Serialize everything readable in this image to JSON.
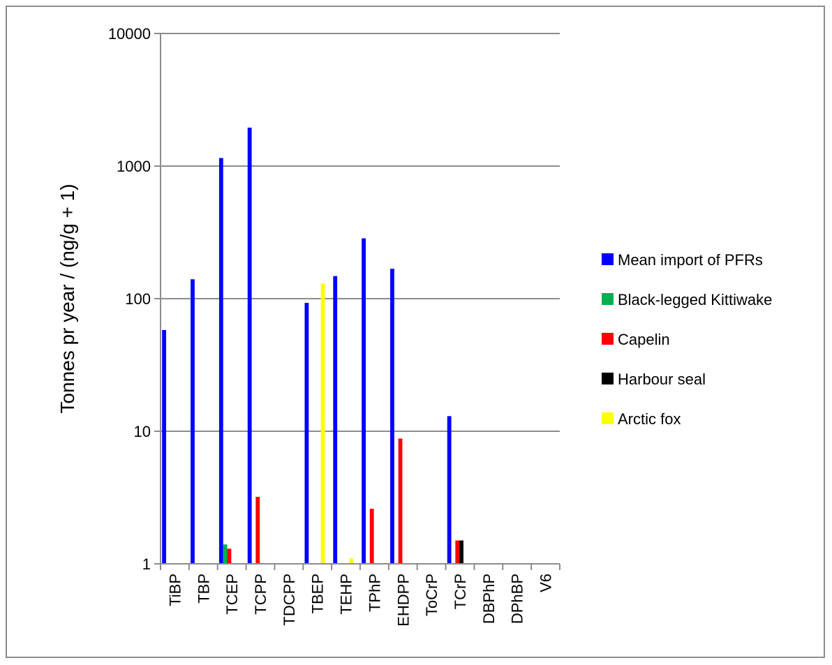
{
  "chart_data": {
    "type": "bar",
    "title": "",
    "xlabel": "",
    "ylabel": "Tonnes pr year / (ng/g + 1)",
    "yscale": "log",
    "ylim": [
      1,
      10000
    ],
    "yticks": [
      1,
      10,
      100,
      1000,
      10000
    ],
    "ytick_labels": [
      "1",
      "10",
      "100",
      "1000",
      "10000"
    ],
    "grid": "horizontal",
    "legend_position": "right",
    "categories": [
      "TiBP",
      "TBP",
      "TCEP",
      "TCPP",
      "TDCPP",
      "TBEP",
      "TEHP",
      "TPhP",
      "EHDPP",
      "ToCrP",
      "TCrP",
      "DBPhP",
      "DPhBP",
      "V6"
    ],
    "series": [
      {
        "name": "Mean import of PFRs",
        "color": "#0000FF",
        "values": [
          58,
          140,
          1150,
          1950,
          null,
          93,
          148,
          285,
          168,
          null,
          13,
          null,
          null,
          null
        ]
      },
      {
        "name": "Black-legged Kittiwake",
        "color": "#00B050",
        "values": [
          null,
          null,
          1.4,
          null,
          null,
          null,
          null,
          null,
          null,
          null,
          null,
          null,
          null,
          null
        ]
      },
      {
        "name": "Capelin",
        "color": "#FF0000",
        "values": [
          null,
          null,
          1.3,
          3.2,
          null,
          null,
          null,
          2.6,
          8.8,
          null,
          1.5,
          null,
          null,
          null
        ]
      },
      {
        "name": "Harbour seal",
        "color": "#000000",
        "values": [
          null,
          null,
          null,
          null,
          null,
          null,
          null,
          null,
          null,
          null,
          1.5,
          null,
          null,
          null
        ]
      },
      {
        "name": "Arctic fox",
        "color": "#FFFF00",
        "values": [
          null,
          null,
          null,
          null,
          null,
          130,
          1.1,
          null,
          null,
          null,
          null,
          null,
          null,
          null
        ]
      }
    ]
  }
}
